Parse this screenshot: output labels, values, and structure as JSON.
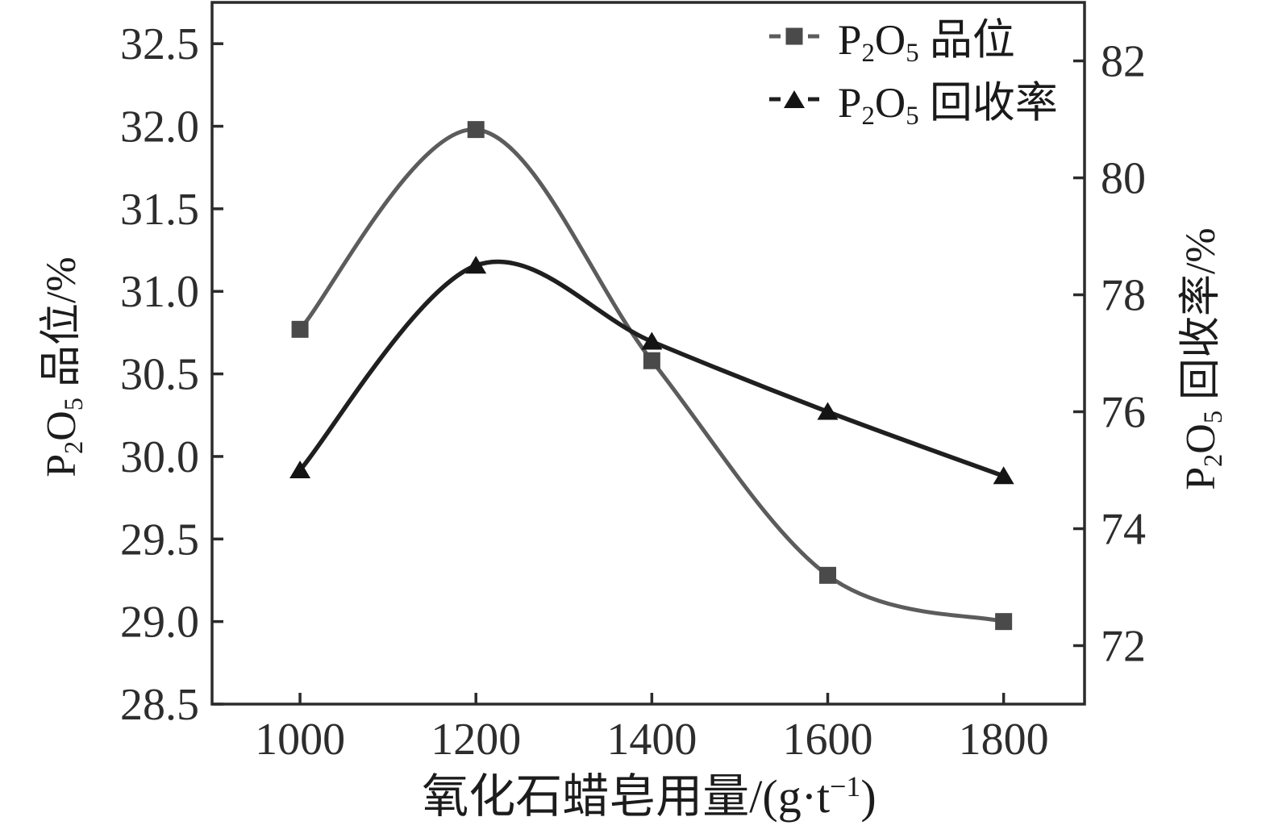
{
  "chart_data": {
    "type": "line",
    "x": [
      1000,
      1200,
      1400,
      1600,
      1800
    ],
    "x_axis": {
      "label": "氧化石蜡皂用量/(g·t−1)",
      "label_parts": [
        {
          "t": "氧化石蜡皂用量/(g·t"
        },
        {
          "t": "−1",
          "sup": true
        },
        {
          "t": ")"
        }
      ],
      "ticks": [
        "1000",
        "1200",
        "1400",
        "1600",
        "1800"
      ],
      "tick_values": [
        1000,
        1200,
        1400,
        1600,
        1800
      ],
      "range": [
        900,
        1892
      ]
    },
    "left_axis": {
      "label": "P2O5 品位/%",
      "label_parts": [
        {
          "t": "P"
        },
        {
          "t": "2",
          "sub": true
        },
        {
          "t": "O"
        },
        {
          "t": "5",
          "sub": true
        },
        {
          "t": " 品位/%"
        }
      ],
      "ticks": [
        "32.5",
        "32.0",
        "31.5",
        "31.0",
        "30.5",
        "30.0",
        "29.5",
        "29.0",
        "28.5"
      ],
      "tick_values": [
        32.5,
        32.0,
        31.5,
        31.0,
        30.5,
        30.0,
        29.5,
        29.0,
        28.5
      ],
      "range": [
        28.5,
        32.75
      ]
    },
    "right_axis": {
      "label": "P2O5 回收率/%",
      "label_parts": [
        {
          "t": "P"
        },
        {
          "t": "2",
          "sub": true
        },
        {
          "t": "O"
        },
        {
          "t": "5",
          "sub": true
        },
        {
          "t": " 回收率/%"
        }
      ],
      "ticks": [
        "82",
        "80",
        "78",
        "76",
        "74",
        "72"
      ],
      "tick_values": [
        82,
        80,
        78,
        76,
        74,
        72
      ],
      "range": [
        71,
        83
      ]
    },
    "series": [
      {
        "name": "P2O5 品位",
        "name_parts": [
          {
            "t": "P"
          },
          {
            "t": "2",
            "sub": true
          },
          {
            "t": "O"
          },
          {
            "t": "5",
            "sub": true
          },
          {
            "t": " 品位"
          }
        ],
        "axis": "left",
        "marker": "square",
        "line_color": "#5c5c5c",
        "marker_color": "#4a4a4a",
        "values": [
          30.77,
          31.98,
          30.58,
          29.28,
          29.0
        ]
      },
      {
        "name": "P2O5 回收率",
        "name_parts": [
          {
            "t": "P"
          },
          {
            "t": "2",
            "sub": true
          },
          {
            "t": "O"
          },
          {
            "t": "5",
            "sub": true
          },
          {
            "t": " 回收率"
          }
        ],
        "axis": "right",
        "marker": "triangle",
        "line_color": "#1f1f1f",
        "marker_color": "#141414",
        "values": [
          75.0,
          78.5,
          77.2,
          76.0,
          74.9
        ]
      }
    ],
    "legend_position": "top-right-inside",
    "grid": false,
    "axis_color": "#2b2b2b",
    "tick_label_color": "#2d2d2d",
    "background": "#ffffff"
  }
}
